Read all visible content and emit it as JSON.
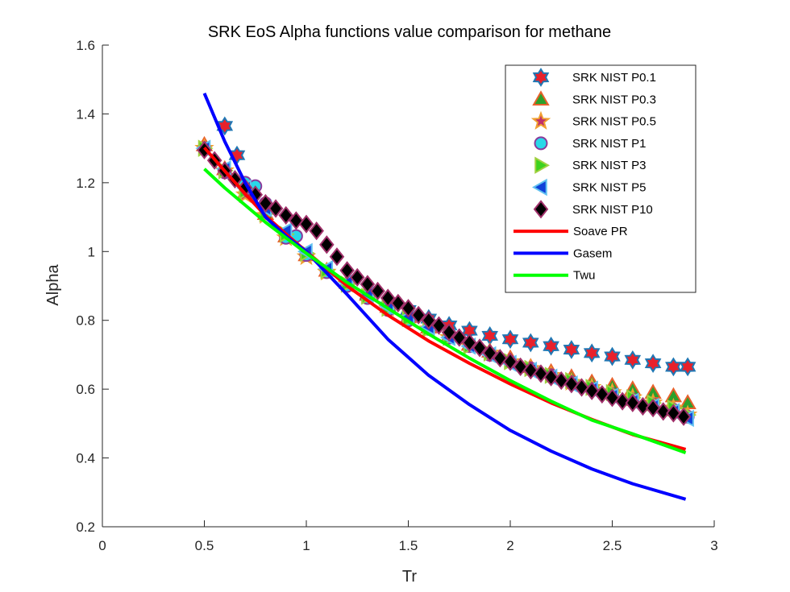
{
  "chart_data": {
    "type": "line",
    "title": "SRK EoS Alpha functions value comparison for methane",
    "xlabel": "Tr",
    "ylabel": "Alpha",
    "xlim": [
      0,
      3
    ],
    "ylim": [
      0.2,
      1.6
    ],
    "xticks": [
      "0",
      "0.5",
      "1",
      "1.5",
      "2",
      "2.5",
      "3"
    ],
    "yticks": [
      "0.2",
      "0.4",
      "0.6",
      "0.8",
      "1",
      "1.2",
      "1.4",
      "1.6"
    ],
    "grid": false,
    "legend_position": "top-right",
    "series": [
      {
        "name": "SRK NIST P0.1",
        "kind": "markers",
        "marker": "hexagram",
        "fill": "#e8212b",
        "stroke": "#1f77b4",
        "x": [
          0.6,
          0.66,
          1.3,
          1.4,
          1.5,
          1.6,
          1.7,
          1.8,
          1.9,
          2.0,
          2.1,
          2.2,
          2.3,
          2.4,
          2.5,
          2.6,
          2.7,
          2.8,
          2.87
        ],
        "y": [
          1.365,
          1.28,
          0.875,
          0.84,
          0.83,
          0.805,
          0.785,
          0.77,
          0.755,
          0.745,
          0.735,
          0.725,
          0.715,
          0.705,
          0.695,
          0.685,
          0.675,
          0.665,
          0.665
        ]
      },
      {
        "name": "SRK NIST P0.3",
        "kind": "markers",
        "marker": "triangle-up",
        "fill": "#2ca02c",
        "stroke": "#e8612b",
        "x": [
          0.5,
          0.6,
          0.7,
          0.8,
          0.9,
          1.0,
          1.1,
          1.2,
          1.3,
          1.4,
          1.5,
          1.6,
          1.7,
          1.8,
          1.9,
          2.0,
          2.1,
          2.2,
          2.3,
          2.4,
          2.5,
          2.6,
          2.7,
          2.8,
          2.87
        ],
        "y": [
          1.31,
          1.24,
          1.17,
          1.11,
          1.045,
          0.99,
          0.945,
          0.91,
          0.875,
          0.84,
          0.81,
          0.78,
          0.755,
          0.73,
          0.71,
          0.69,
          0.665,
          0.65,
          0.635,
          0.62,
          0.61,
          0.6,
          0.59,
          0.58,
          0.56
        ]
      },
      {
        "name": "SRK NIST P0.5",
        "kind": "markers",
        "marker": "star",
        "fill": "#c0306a",
        "stroke": "#f0a030",
        "x": [
          0.5,
          0.6,
          0.7,
          0.8,
          0.9,
          1.0,
          1.1,
          1.2,
          1.3,
          1.4,
          1.5,
          1.6,
          1.7,
          1.8,
          1.9,
          2.0,
          2.1,
          2.2,
          2.3,
          2.4,
          2.5,
          2.6,
          2.7,
          2.8,
          2.87
        ],
        "y": [
          1.3,
          1.235,
          1.165,
          1.105,
          1.04,
          0.985,
          0.94,
          0.905,
          0.87,
          0.835,
          0.805,
          0.775,
          0.75,
          0.725,
          0.705,
          0.68,
          0.66,
          0.64,
          0.62,
          0.605,
          0.59,
          0.575,
          0.56,
          0.545,
          0.525
        ]
      },
      {
        "name": "SRK NIST P1",
        "kind": "markers",
        "marker": "circle",
        "fill": "#29d8e8",
        "stroke": "#8b3a9b",
        "x": [
          0.5,
          0.6,
          0.7,
          0.75,
          0.8,
          0.9,
          0.95,
          1.0,
          1.1,
          1.2,
          1.3,
          1.4,
          1.5,
          1.6,
          1.7,
          1.8,
          1.9,
          2.0,
          2.1,
          2.2,
          2.3,
          2.4,
          2.5,
          2.6,
          2.7,
          2.8,
          2.87
        ],
        "y": [
          1.3,
          1.23,
          1.2,
          1.19,
          1.14,
          1.04,
          1.045,
          0.99,
          0.94,
          0.9,
          0.865,
          0.83,
          0.8,
          0.775,
          0.75,
          0.725,
          0.7,
          0.68,
          0.66,
          0.64,
          0.62,
          0.6,
          0.585,
          0.57,
          0.555,
          0.54,
          0.52
        ]
      },
      {
        "name": "SRK NIST P3",
        "kind": "markers",
        "marker": "triangle-right",
        "fill": "#3cd21e",
        "stroke": "#a0d040",
        "x": [
          0.5,
          0.6,
          0.7,
          0.8,
          0.9,
          1.0,
          1.1,
          1.2,
          1.3,
          1.4,
          1.5,
          1.6,
          1.7,
          1.8,
          1.9,
          2.0,
          2.1,
          2.2,
          2.3,
          2.4,
          2.5,
          2.6,
          2.7,
          2.8,
          2.87
        ],
        "y": [
          1.3,
          1.235,
          1.175,
          1.11,
          1.05,
          0.995,
          0.945,
          0.905,
          0.87,
          0.835,
          0.805,
          0.775,
          0.75,
          0.725,
          0.705,
          0.68,
          0.66,
          0.64,
          0.625,
          0.605,
          0.59,
          0.575,
          0.56,
          0.545,
          0.525
        ]
      },
      {
        "name": "SRK NIST P5",
        "kind": "markers",
        "marker": "triangle-left",
        "fill": "#1040d8",
        "stroke": "#60c0f0",
        "x": [
          0.5,
          0.6,
          0.7,
          0.8,
          0.9,
          1.0,
          1.1,
          1.2,
          1.3,
          1.4,
          1.5,
          1.6,
          1.7,
          1.8,
          1.9,
          2.0,
          2.1,
          2.2,
          2.3,
          2.4,
          2.5,
          2.6,
          2.7,
          2.8,
          2.87
        ],
        "y": [
          1.3,
          1.24,
          1.185,
          1.125,
          1.06,
          1.0,
          0.95,
          0.91,
          0.875,
          0.84,
          0.81,
          0.78,
          0.75,
          0.725,
          0.7,
          0.675,
          0.655,
          0.635,
          0.615,
          0.6,
          0.58,
          0.565,
          0.55,
          0.535,
          0.515
        ]
      },
      {
        "name": "SRK NIST P10",
        "kind": "markers",
        "marker": "diamond",
        "fill": "#000000",
        "stroke": "#a0306a",
        "x": [
          0.5,
          0.55,
          0.6,
          0.65,
          0.7,
          0.75,
          0.8,
          0.85,
          0.9,
          0.95,
          1.0,
          1.05,
          1.1,
          1.15,
          1.2,
          1.25,
          1.3,
          1.35,
          1.4,
          1.45,
          1.5,
          1.55,
          1.6,
          1.65,
          1.7,
          1.75,
          1.8,
          1.85,
          1.9,
          1.95,
          2.0,
          2.05,
          2.1,
          2.15,
          2.2,
          2.25,
          2.3,
          2.35,
          2.4,
          2.45,
          2.5,
          2.55,
          2.6,
          2.65,
          2.7,
          2.75,
          2.8,
          2.85
        ],
        "y": [
          1.295,
          1.265,
          1.235,
          1.21,
          1.185,
          1.165,
          1.14,
          1.125,
          1.105,
          1.09,
          1.08,
          1.06,
          1.02,
          0.985,
          0.945,
          0.925,
          0.905,
          0.885,
          0.865,
          0.85,
          0.835,
          0.815,
          0.8,
          0.785,
          0.765,
          0.75,
          0.735,
          0.72,
          0.705,
          0.69,
          0.68,
          0.665,
          0.655,
          0.645,
          0.635,
          0.625,
          0.615,
          0.605,
          0.595,
          0.585,
          0.575,
          0.565,
          0.56,
          0.55,
          0.545,
          0.535,
          0.53,
          0.52
        ]
      },
      {
        "name": "Soave PR",
        "kind": "line",
        "color": "#ff0000",
        "x": [
          0.5,
          0.6,
          0.7,
          0.8,
          0.9,
          1.0,
          1.2,
          1.4,
          1.6,
          1.8,
          2.0,
          2.2,
          2.4,
          2.6,
          2.86
        ],
        "y": [
          1.302,
          1.234,
          1.168,
          1.104,
          1.051,
          1.0,
          0.9,
          0.815,
          0.74,
          0.675,
          0.615,
          0.56,
          0.512,
          0.468,
          0.425
        ]
      },
      {
        "name": "Gasem",
        "kind": "line",
        "color": "#0000ff",
        "x": [
          0.5,
          0.6,
          0.7,
          0.8,
          0.9,
          1.0,
          1.2,
          1.4,
          1.6,
          1.8,
          2.0,
          2.2,
          2.4,
          2.6,
          2.86
        ],
        "y": [
          1.46,
          1.32,
          1.2,
          1.1,
          1.045,
          1.0,
          0.875,
          0.745,
          0.64,
          0.555,
          0.48,
          0.42,
          0.368,
          0.325,
          0.28
        ]
      },
      {
        "name": "Twu",
        "kind": "line",
        "color": "#00ff00",
        "x": [
          0.5,
          0.6,
          0.7,
          0.8,
          0.9,
          1.0,
          1.2,
          1.4,
          1.6,
          1.8,
          2.0,
          2.2,
          2.4,
          2.6,
          2.86
        ],
        "y": [
          1.24,
          1.185,
          1.135,
          1.085,
          1.04,
          0.995,
          0.91,
          0.835,
          0.76,
          0.69,
          0.625,
          0.565,
          0.51,
          0.47,
          0.415
        ]
      }
    ]
  }
}
